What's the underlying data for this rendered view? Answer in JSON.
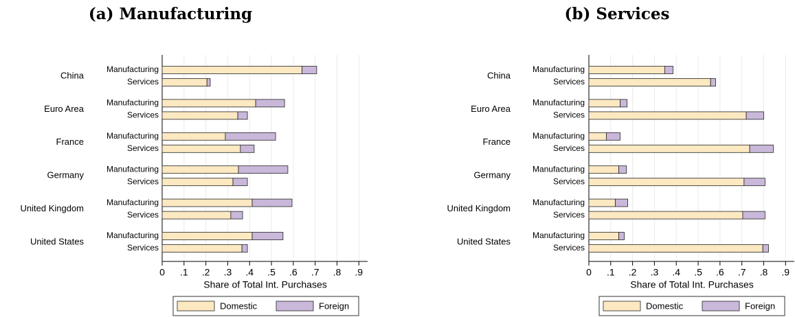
{
  "chart_data": [
    {
      "type": "bar",
      "orientation": "horizontal",
      "stacked": true,
      "title": "(a) Manufacturing",
      "xlabel": "Share of Total Int. Purchases",
      "groups": [
        "China",
        "Euro Area",
        "France",
        "Germany",
        "United Kingdom",
        "United States"
      ],
      "categories": [
        "Manufacturing",
        "Services",
        "Manufacturing",
        "Services",
        "Manufacturing",
        "Services",
        "Manufacturing",
        "Services",
        "Manufacturing",
        "Services",
        "Manufacturing",
        "Services"
      ],
      "series": [
        {
          "name": "Domestic",
          "color": "#fce8c1",
          "values": [
            0.64,
            0.205,
            0.428,
            0.346,
            0.289,
            0.358,
            0.349,
            0.324,
            0.412,
            0.314,
            0.412,
            0.365
          ]
        },
        {
          "name": "Foreign",
          "color": "#c9b8da",
          "values": [
            0.067,
            0.015,
            0.132,
            0.044,
            0.23,
            0.063,
            0.226,
            0.066,
            0.182,
            0.054,
            0.141,
            0.025
          ]
        }
      ],
      "xlim": [
        0,
        0.94
      ],
      "xticks": [
        0,
        {
          "value": 0.1,
          "label": ".1"
        },
        {
          "value": 0.2,
          "label": ".2"
        },
        {
          "value": 0.3,
          "label": ".3"
        },
        {
          "value": 0.4,
          "label": ".4"
        },
        {
          "value": 0.5,
          "label": ".5"
        },
        {
          "value": 0.6,
          "label": ".6"
        },
        {
          "value": 0.7,
          "label": ".7"
        },
        {
          "value": 0.8,
          "label": ".8"
        },
        {
          "value": 0.9,
          "label": ".9"
        }
      ],
      "grid": true,
      "legend": "bottom"
    },
    {
      "type": "bar",
      "orientation": "horizontal",
      "stacked": true,
      "title": "(b) Services",
      "xlabel": "Share of Total Int. Purchases",
      "groups": [
        "China",
        "Euro Area",
        "France",
        "Germany",
        "United Kingdom",
        "United States"
      ],
      "categories": [
        "Manufacturing",
        "Services",
        "Manufacturing",
        "Services",
        "Manufacturing",
        "Services",
        "Manufacturing",
        "Services",
        "Manufacturing",
        "Services",
        "Manufacturing",
        "Services"
      ],
      "series": [
        {
          "name": "Domestic",
          "color": "#fce8c1",
          "values": [
            0.347,
            0.557,
            0.143,
            0.72,
            0.08,
            0.736,
            0.137,
            0.71,
            0.121,
            0.704,
            0.137,
            0.796
          ]
        },
        {
          "name": "Foreign",
          "color": "#c9b8da",
          "values": [
            0.038,
            0.023,
            0.032,
            0.08,
            0.063,
            0.108,
            0.035,
            0.096,
            0.057,
            0.102,
            0.025,
            0.026
          ]
        }
      ],
      "xlim": [
        0,
        0.94
      ],
      "xticks": [
        0,
        {
          "value": 0.1,
          "label": ".1"
        },
        {
          "value": 0.2,
          "label": ".2"
        },
        {
          "value": 0.3,
          "label": ".3"
        },
        {
          "value": 0.4,
          "label": ".4"
        },
        {
          "value": 0.5,
          "label": ".5"
        },
        {
          "value": 0.6,
          "label": ".6"
        },
        {
          "value": 0.7,
          "label": ".7"
        },
        {
          "value": 0.8,
          "label": ".8"
        },
        {
          "value": 0.9,
          "label": ".9"
        }
      ],
      "grid": true,
      "legend": "bottom"
    }
  ]
}
